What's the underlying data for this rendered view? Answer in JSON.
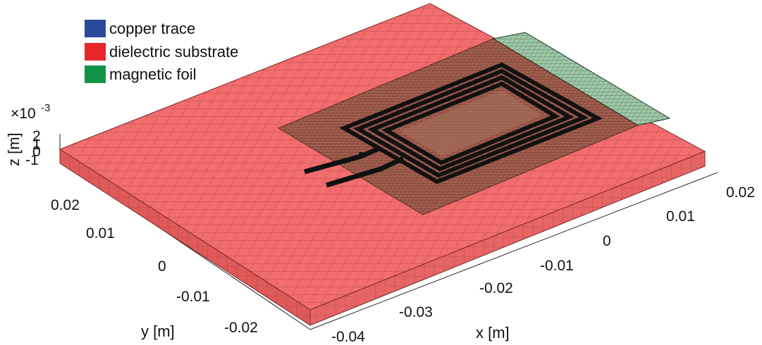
{
  "legend": {
    "items": [
      {
        "label": "copper trace",
        "color": "#2a4b9b"
      },
      {
        "label": "dielectric substrate",
        "color": "#e8262b"
      },
      {
        "label": "magnetic foil",
        "color": "#0f9447"
      }
    ]
  },
  "axes": {
    "x": {
      "label": "x [m]",
      "ticks": [
        "-0.04",
        "-0.03",
        "-0.02",
        "-0.01",
        "0",
        "0.01",
        "0.02"
      ]
    },
    "y": {
      "label": "y [m]",
      "ticks": [
        "-0.02",
        "-0.01",
        "0",
        "0.01",
        "0.02"
      ]
    },
    "z": {
      "label": "z [m]",
      "ticks": [
        "-1",
        "0",
        "1",
        "2"
      ],
      "exponent_base": "×10",
      "exponent_power": "-3"
    }
  },
  "colors": {
    "substrate_fill": "#f26d6d",
    "substrate_side": "#e05a5a",
    "mesh_line": "#7a2a2a",
    "foil_fill": "#9fc8a8",
    "foil_mesh": "#1d3a26",
    "copper": "#111111",
    "axis": "#222222"
  }
}
